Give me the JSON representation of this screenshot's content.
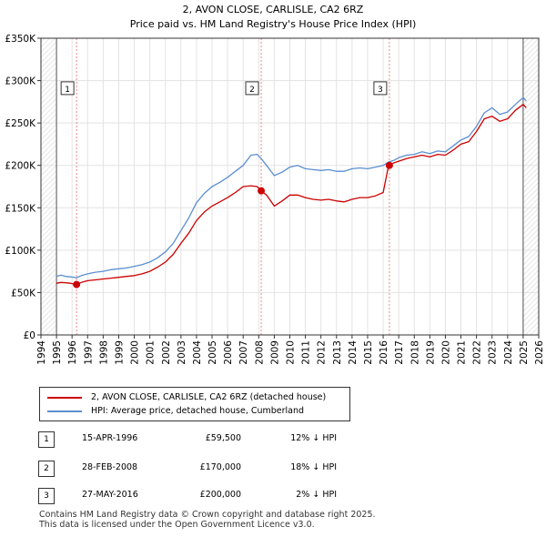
{
  "chart_data": {
    "type": "line",
    "title": "2, AVON CLOSE, CARLISLE, CA2 6RZ",
    "subtitle": "Price paid vs. HM Land Registry's House Price Index (HPI)",
    "xlabel": "",
    "ylabel": "",
    "xlim": [
      1994,
      2026
    ],
    "ylim": [
      0,
      350000
    ],
    "x_ticks": [
      "1994",
      "1995",
      "1996",
      "1997",
      "1998",
      "1999",
      "2000",
      "2001",
      "2002",
      "2003",
      "2004",
      "2005",
      "2006",
      "2007",
      "2008",
      "2009",
      "2010",
      "2011",
      "2012",
      "2013",
      "2014",
      "2015",
      "2016",
      "2017",
      "2018",
      "2019",
      "2020",
      "2021",
      "2022",
      "2023",
      "2024",
      "2025",
      "2026"
    ],
    "y_ticks": [
      {
        "value": 0,
        "label": "£0"
      },
      {
        "value": 50000,
        "label": "£50K"
      },
      {
        "value": 100000,
        "label": "£100K"
      },
      {
        "value": 150000,
        "label": "£150K"
      },
      {
        "value": 200000,
        "label": "£200K"
      },
      {
        "value": 250000,
        "label": "£250K"
      },
      {
        "value": 300000,
        "label": "£300K"
      },
      {
        "value": 350000,
        "label": "£350K"
      }
    ],
    "grid": true,
    "series": [
      {
        "name": "2, AVON CLOSE, CARLISLE, CA2 6RZ (detached house)",
        "color": "#cc0000",
        "points": [
          [
            1995.0,
            61000
          ],
          [
            1995.3,
            62000
          ],
          [
            1995.6,
            61500
          ],
          [
            1995.9,
            61000
          ],
          [
            1996.29,
            59500
          ],
          [
            1996.6,
            62000
          ],
          [
            1997.0,
            64000
          ],
          [
            1997.5,
            65000
          ],
          [
            1998.0,
            66000
          ],
          [
            1998.5,
            67000
          ],
          [
            1999.0,
            68000
          ],
          [
            1999.5,
            69000
          ],
          [
            2000.0,
            70000
          ],
          [
            2000.5,
            72000
          ],
          [
            2001.0,
            75000
          ],
          [
            2001.5,
            80000
          ],
          [
            2002.0,
            86000
          ],
          [
            2002.5,
            95000
          ],
          [
            2003.0,
            108000
          ],
          [
            2003.5,
            120000
          ],
          [
            2004.0,
            135000
          ],
          [
            2004.5,
            145000
          ],
          [
            2005.0,
            152000
          ],
          [
            2005.5,
            157000
          ],
          [
            2006.0,
            162000
          ],
          [
            2006.5,
            168000
          ],
          [
            2007.0,
            175000
          ],
          [
            2007.5,
            176000
          ],
          [
            2007.9,
            175000
          ],
          [
            2008.16,
            170000
          ],
          [
            2008.5,
            165000
          ],
          [
            2009.0,
            152000
          ],
          [
            2009.5,
            158000
          ],
          [
            2010.0,
            165000
          ],
          [
            2010.5,
            165000
          ],
          [
            2011.0,
            162000
          ],
          [
            2011.5,
            160000
          ],
          [
            2012.0,
            159000
          ],
          [
            2012.5,
            160000
          ],
          [
            2013.0,
            158000
          ],
          [
            2013.5,
            157000
          ],
          [
            2014.0,
            160000
          ],
          [
            2014.5,
            162000
          ],
          [
            2015.0,
            162000
          ],
          [
            2015.5,
            164000
          ],
          [
            2016.0,
            168000
          ],
          [
            2016.35,
            200000
          ],
          [
            2016.7,
            203000
          ],
          [
            2017.0,
            205000
          ],
          [
            2017.5,
            208000
          ],
          [
            2018.0,
            210000
          ],
          [
            2018.5,
            212000
          ],
          [
            2019.0,
            210000
          ],
          [
            2019.5,
            213000
          ],
          [
            2020.0,
            212000
          ],
          [
            2020.5,
            218000
          ],
          [
            2021.0,
            225000
          ],
          [
            2021.5,
            228000
          ],
          [
            2022.0,
            240000
          ],
          [
            2022.5,
            255000
          ],
          [
            2023.0,
            258000
          ],
          [
            2023.5,
            252000
          ],
          [
            2024.0,
            255000
          ],
          [
            2024.5,
            265000
          ],
          [
            2025.0,
            272000
          ],
          [
            2025.2,
            268000
          ]
        ]
      },
      {
        "name": "HPI: Average price, detached house, Cumberland",
        "color": "#5b8fd0",
        "points": [
          [
            1995.0,
            69000
          ],
          [
            1995.3,
            70500
          ],
          [
            1995.6,
            69000
          ],
          [
            1995.9,
            68500
          ],
          [
            1996.29,
            67500
          ],
          [
            1996.6,
            70000
          ],
          [
            1997.0,
            72000
          ],
          [
            1997.5,
            74000
          ],
          [
            1998.0,
            75000
          ],
          [
            1998.5,
            77000
          ],
          [
            1999.0,
            78000
          ],
          [
            1999.5,
            79000
          ],
          [
            2000.0,
            81000
          ],
          [
            2000.5,
            83000
          ],
          [
            2001.0,
            86000
          ],
          [
            2001.5,
            91000
          ],
          [
            2002.0,
            98000
          ],
          [
            2002.5,
            108000
          ],
          [
            2003.0,
            123000
          ],
          [
            2003.5,
            138000
          ],
          [
            2004.0,
            156000
          ],
          [
            2004.5,
            167000
          ],
          [
            2005.0,
            175000
          ],
          [
            2005.5,
            180000
          ],
          [
            2006.0,
            186000
          ],
          [
            2006.5,
            193000
          ],
          [
            2007.0,
            200000
          ],
          [
            2007.5,
            212000
          ],
          [
            2007.9,
            213000
          ],
          [
            2008.16,
            208000
          ],
          [
            2008.5,
            200000
          ],
          [
            2009.0,
            188000
          ],
          [
            2009.5,
            192000
          ],
          [
            2010.0,
            198000
          ],
          [
            2010.5,
            200000
          ],
          [
            2011.0,
            196000
          ],
          [
            2011.5,
            195000
          ],
          [
            2012.0,
            194000
          ],
          [
            2012.5,
            195000
          ],
          [
            2013.0,
            193000
          ],
          [
            2013.5,
            193000
          ],
          [
            2014.0,
            196000
          ],
          [
            2014.5,
            197000
          ],
          [
            2015.0,
            196000
          ],
          [
            2015.5,
            198000
          ],
          [
            2016.0,
            200000
          ],
          [
            2016.35,
            204000
          ],
          [
            2016.7,
            206000
          ],
          [
            2017.0,
            209000
          ],
          [
            2017.5,
            212000
          ],
          [
            2018.0,
            213000
          ],
          [
            2018.5,
            216000
          ],
          [
            2019.0,
            214000
          ],
          [
            2019.5,
            217000
          ],
          [
            2020.0,
            216000
          ],
          [
            2020.5,
            223000
          ],
          [
            2021.0,
            230000
          ],
          [
            2021.5,
            234000
          ],
          [
            2022.0,
            246000
          ],
          [
            2022.5,
            262000
          ],
          [
            2023.0,
            268000
          ],
          [
            2023.5,
            260000
          ],
          [
            2024.0,
            263000
          ],
          [
            2024.5,
            272000
          ],
          [
            2025.0,
            280000
          ],
          [
            2025.2,
            276000
          ]
        ]
      }
    ],
    "sales": [
      {
        "num": "1",
        "x": 1996.29,
        "value": 59500
      },
      {
        "num": "2",
        "x": 2008.16,
        "value": 170000
      },
      {
        "num": "3",
        "x": 2016.4,
        "value": 200000
      }
    ],
    "marker_label_y": 290000
  },
  "legend": {
    "items": [
      {
        "label": "2, AVON CLOSE, CARLISLE, CA2 6RZ (detached house)",
        "color": "#cc0000"
      },
      {
        "label": "HPI: Average price, detached house, Cumberland",
        "color": "#5b8fd0"
      }
    ]
  },
  "sales_table": [
    {
      "num": "1",
      "date": "15-APR-1996",
      "price": "£59,500",
      "hpi": "12% ↓ HPI"
    },
    {
      "num": "2",
      "date": "28-FEB-2008",
      "price": "£170,000",
      "hpi": "18% ↓ HPI"
    },
    {
      "num": "3",
      "date": "27-MAY-2016",
      "price": "£200,000",
      "hpi": "2% ↓ HPI"
    }
  ],
  "footer": {
    "line1": "Contains HM Land Registry data © Crown copyright and database right 2025.",
    "line2": "This data is licensed under the Open Government Licence v3.0."
  }
}
